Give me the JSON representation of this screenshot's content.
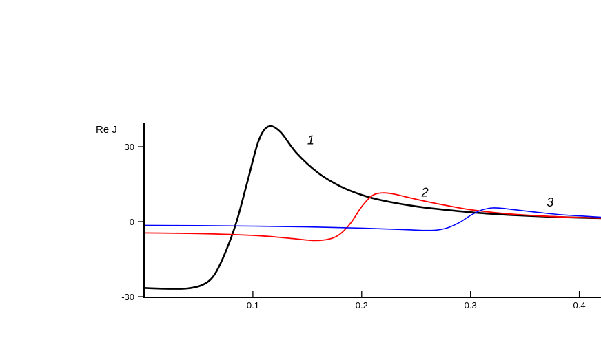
{
  "chart_data": {
    "type": "line",
    "title": "",
    "xlabel": "",
    "ylabel": "Re J",
    "xlim": [
      0,
      0.42
    ],
    "ylim": [
      -30,
      40
    ],
    "xticks": [
      {
        "value": 0.1,
        "label": "0.1"
      },
      {
        "value": 0.2,
        "label": "0.2"
      },
      {
        "value": 0.3,
        "label": "0.3"
      },
      {
        "value": 0.4,
        "label": "0.4"
      }
    ],
    "yticks": [
      {
        "value": 30,
        "label": "30"
      },
      {
        "value": 0,
        "label": "0"
      },
      {
        "value": -30,
        "label": "-30"
      }
    ],
    "grid": false,
    "series": [
      {
        "name": "1",
        "color": "#000000",
        "x": [
          0.0,
          0.02,
          0.04,
          0.055,
          0.065,
          0.075,
          0.085,
          0.095,
          0.105,
          0.114,
          0.125,
          0.14,
          0.16,
          0.18,
          0.2,
          0.22,
          0.25,
          0.28,
          0.31,
          0.34,
          0.37,
          0.4,
          0.42
        ],
        "y": [
          -26.5,
          -26.8,
          -26.7,
          -25.0,
          -21.0,
          -12.0,
          0.0,
          16.0,
          32.0,
          38.0,
          36.0,
          27.5,
          19.5,
          14.2,
          10.7,
          8.4,
          6.1,
          4.6,
          3.4,
          2.6,
          2.0,
          1.6,
          1.4
        ]
      },
      {
        "name": "2",
        "color": "#ff0000",
        "x": [
          0.0,
          0.05,
          0.1,
          0.13,
          0.155,
          0.17,
          0.18,
          0.19,
          0.2,
          0.21,
          0.22,
          0.23,
          0.24,
          0.26,
          0.28,
          0.3,
          0.33,
          0.36,
          0.39,
          0.42
        ],
        "y": [
          -4.5,
          -4.8,
          -5.5,
          -6.5,
          -7.5,
          -7.0,
          -5.0,
          -0.5,
          6.0,
          10.5,
          11.5,
          11.0,
          10.0,
          8.0,
          6.3,
          4.8,
          3.3,
          2.4,
          1.8,
          1.4
        ]
      },
      {
        "name": "3",
        "color": "#0000ff",
        "x": [
          0.0,
          0.05,
          0.1,
          0.15,
          0.2,
          0.24,
          0.26,
          0.27,
          0.28,
          0.29,
          0.3,
          0.31,
          0.32,
          0.33,
          0.34,
          0.36,
          0.38,
          0.4,
          0.42
        ],
        "y": [
          -1.5,
          -1.6,
          -1.8,
          -2.1,
          -2.6,
          -3.2,
          -3.5,
          -3.3,
          -2.3,
          -0.3,
          2.5,
          4.6,
          5.5,
          5.3,
          4.8,
          3.8,
          2.9,
          2.3,
          1.8
        ]
      }
    ],
    "curve_labels": [
      {
        "text": "1",
        "x": 0.15,
        "y": 31
      },
      {
        "text": "2",
        "x": 0.255,
        "y": 10
      },
      {
        "text": "3",
        "x": 0.37,
        "y": 6
      }
    ]
  }
}
